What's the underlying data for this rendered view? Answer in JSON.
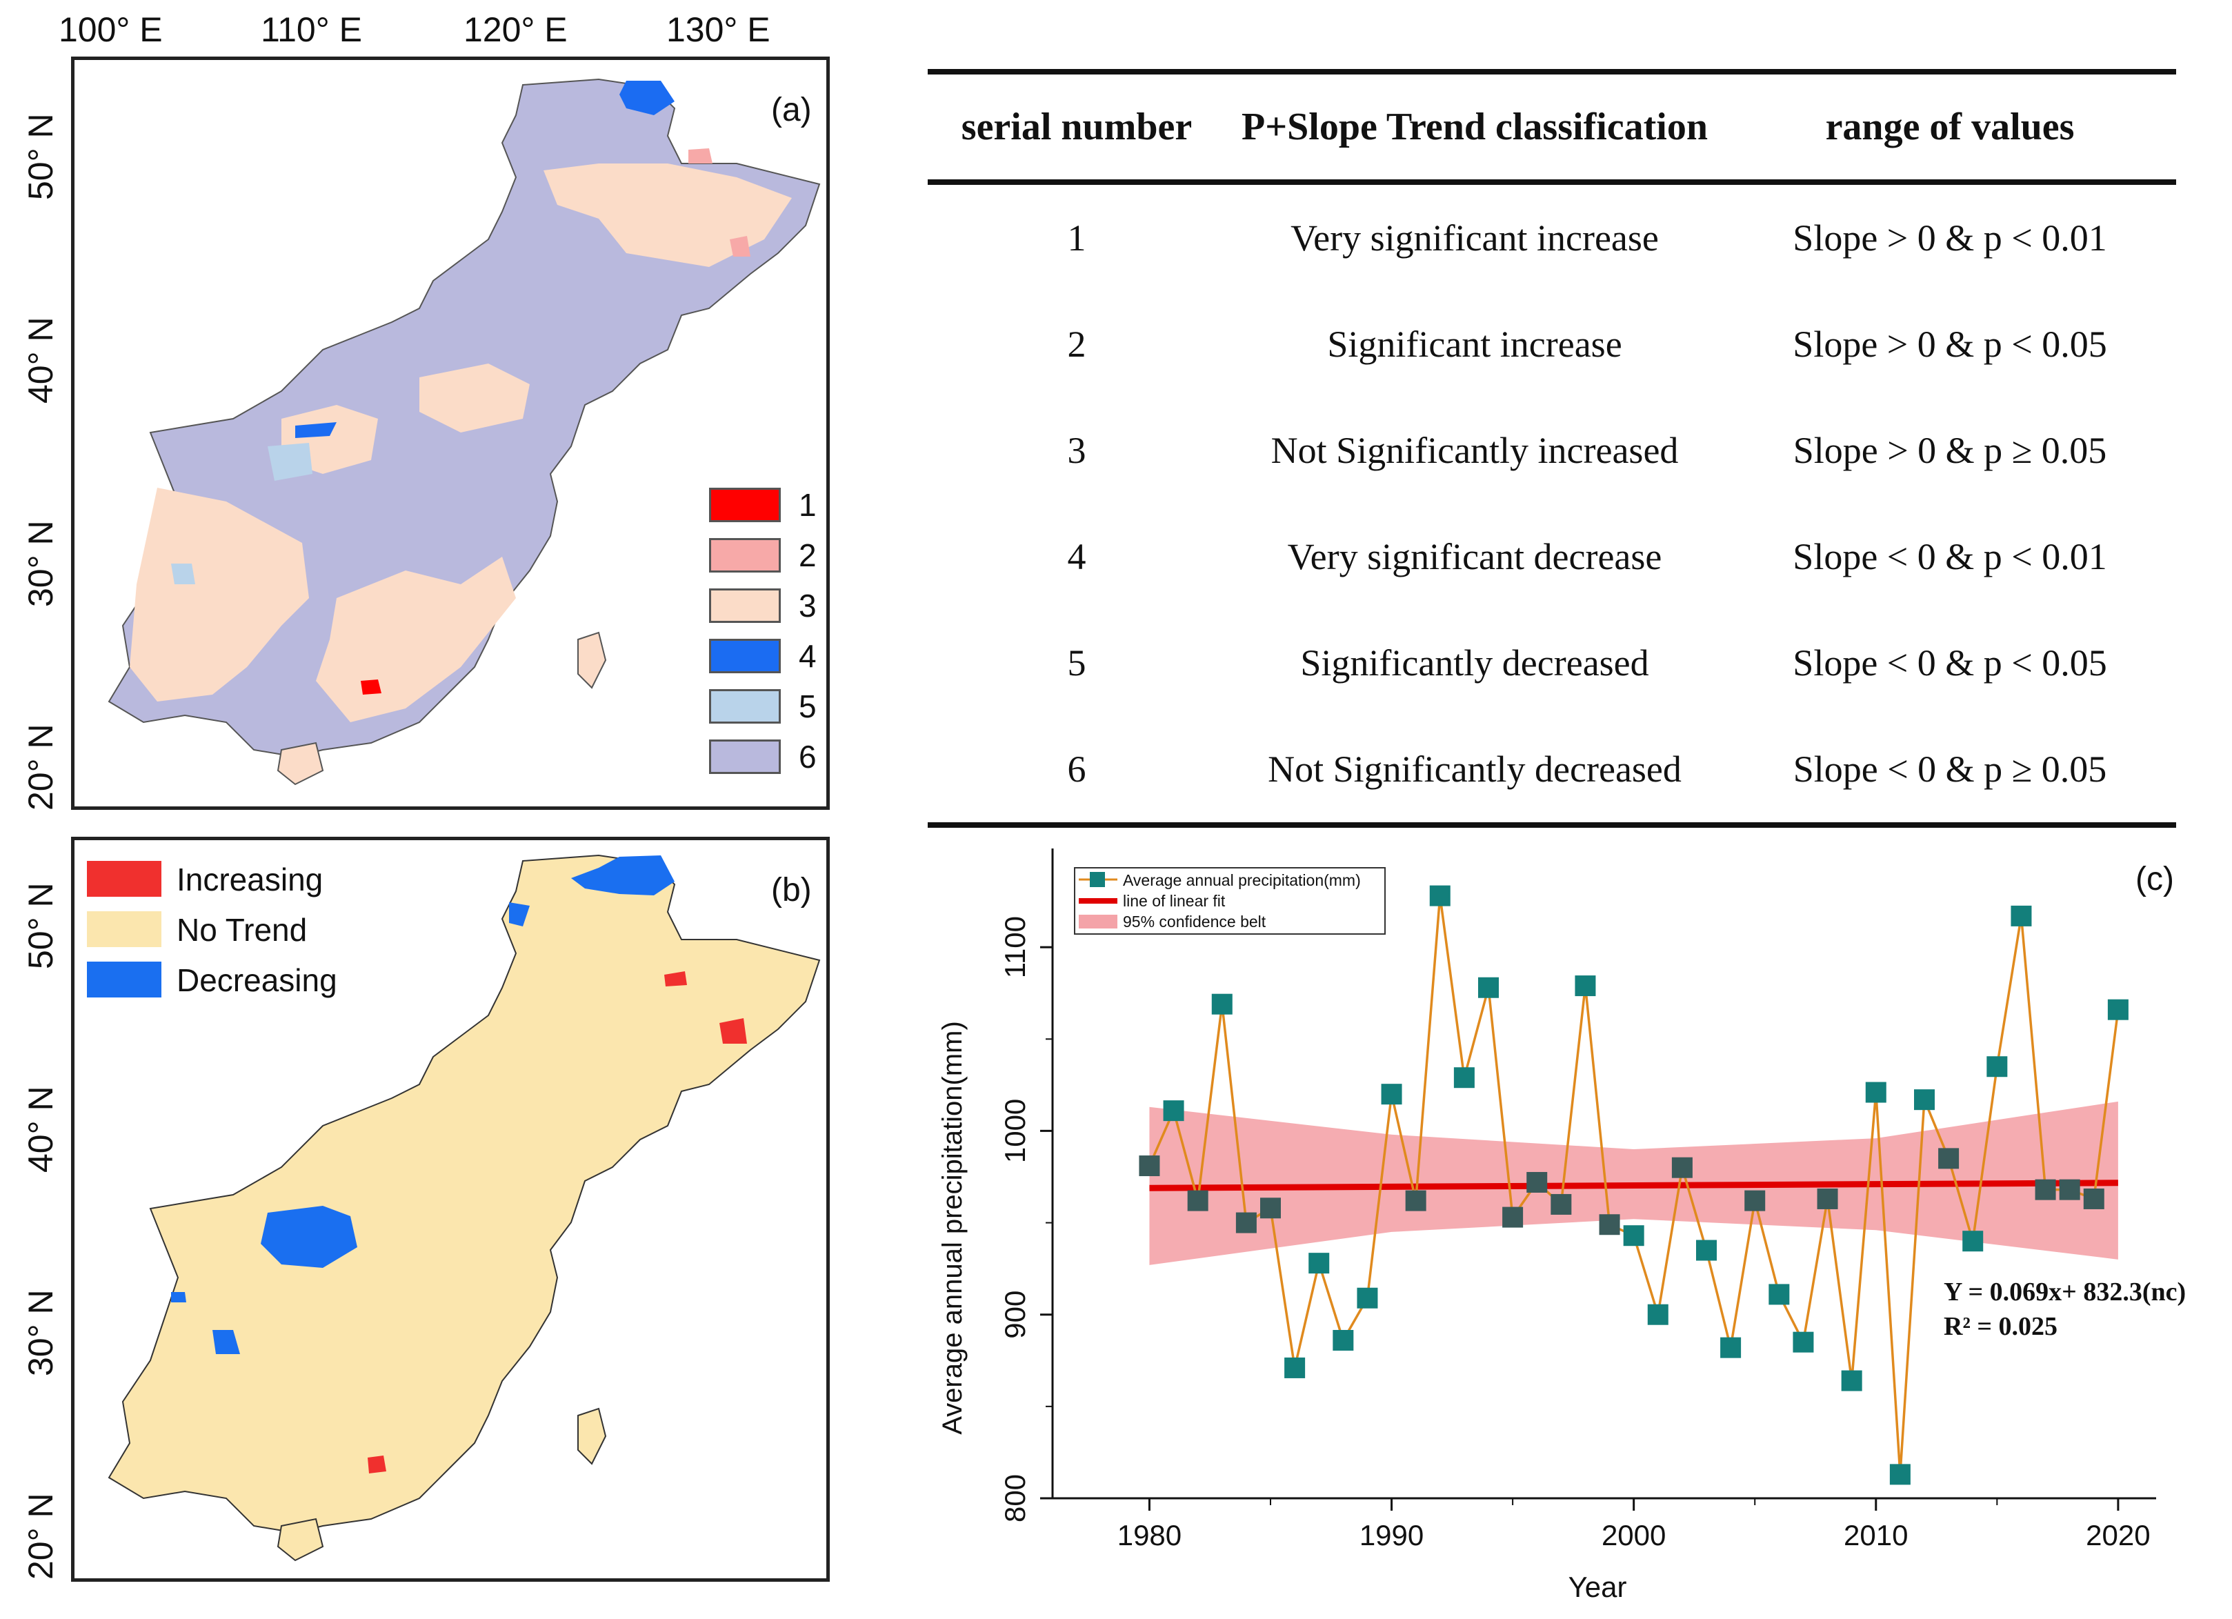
{
  "map_a": {
    "lon_labels": [
      "100° E",
      "110° E",
      "120° E",
      "130° E"
    ],
    "lat_labels": [
      "50° N",
      "40° N",
      "30° N",
      "20° N"
    ],
    "panel_label": "(a)",
    "legend": [
      {
        "label": "1",
        "color": "#ff0000"
      },
      {
        "label": "2",
        "color": "#f7a9a8"
      },
      {
        "label": "3",
        "color": "#fbdcc8"
      },
      {
        "label": "4",
        "color": "#1b6cf2"
      },
      {
        "label": "5",
        "color": "#b9d3ea"
      },
      {
        "label": "6",
        "color": "#b9b9dd"
      }
    ]
  },
  "map_b": {
    "lat_labels": [
      "50° N",
      "40° N",
      "30° N",
      "20° N"
    ],
    "panel_label": "(b)",
    "legend": [
      {
        "label": "Increasing",
        "color": "#f0302e"
      },
      {
        "label": "No Trend",
        "color": "#fbe6ae"
      },
      {
        "label": "Decreasing",
        "color": "#1a6ff0"
      }
    ]
  },
  "table": {
    "headers": [
      "serial number",
      "P+Slope Trend classification",
      "range of values"
    ],
    "rows": [
      {
        "serial": "1",
        "classification": "Very significant increase",
        "range": "Slope > 0 & p < 0.01"
      },
      {
        "serial": "2",
        "classification": "Significant increase",
        "range": "Slope > 0 & p < 0.05"
      },
      {
        "serial": "3",
        "classification": "Not Significantly increased",
        "range": "Slope > 0 & p ≥ 0.05"
      },
      {
        "serial": "4",
        "classification": "Very significant decrease",
        "range": "Slope < 0 & p < 0.01"
      },
      {
        "serial": "5",
        "classification": "Significantly decreased",
        "range": "Slope < 0 & p < 0.05"
      },
      {
        "serial": "6",
        "classification": "Not Significantly decreased",
        "range": "Slope < 0 & p ≥ 0.05"
      }
    ]
  },
  "chart_data": {
    "type": "line",
    "panel_label": "(c)",
    "xlabel": "Year",
    "ylabel": "Average annual precipitation(mm)",
    "xlim": [
      1976,
      2021
    ],
    "ylim": [
      800,
      1150
    ],
    "xticks": [
      1980,
      1990,
      2000,
      2010,
      2020
    ],
    "yticks": [
      800,
      900,
      1000,
      1100
    ],
    "legend": [
      "Average annual precipitation(mm)",
      "line of linear fit",
      "95% confidence belt"
    ],
    "series": [
      {
        "name": "Average annual precipitation(mm)",
        "x": [
          1980,
          1981,
          1982,
          1983,
          1984,
          1985,
          1986,
          1987,
          1988,
          1989,
          1990,
          1991,
          1992,
          1993,
          1994,
          1995,
          1996,
          1997,
          1998,
          1999,
          2000,
          2001,
          2002,
          2003,
          2004,
          2005,
          2006,
          2007,
          2008,
          2009,
          2010,
          2011,
          2012,
          2013,
          2014,
          2015,
          2016,
          2017,
          2018,
          2019,
          2020
        ],
        "values": [
          981,
          1011,
          962,
          1069,
          950,
          958,
          871,
          928,
          886,
          909,
          1020,
          962,
          1128,
          1029,
          1078,
          953,
          972,
          960,
          1079,
          949,
          943,
          900,
          980,
          935,
          882,
          962,
          911,
          885,
          963,
          864,
          1021,
          813,
          1017,
          985,
          940,
          1035,
          1117,
          968,
          968,
          963,
          1066
        ],
        "marker_color": "#137f7b",
        "line_color": "#e08a1e"
      }
    ],
    "fit": {
      "start": [
        1980,
        968.9
      ],
      "end": [
        2020,
        971.7
      ],
      "color": "#e00000"
    },
    "confidence_band": {
      "x": [
        1980,
        1990,
        2000,
        2010,
        2020
      ],
      "upper": [
        1013,
        998,
        990,
        996,
        1016
      ],
      "lower": [
        927,
        945,
        952,
        946,
        930
      ],
      "color": "#f4a3a8"
    },
    "annotations": {
      "equation": "Y = 0.069x+ 832.3(nc)",
      "r2": "R² = 0.025"
    }
  }
}
